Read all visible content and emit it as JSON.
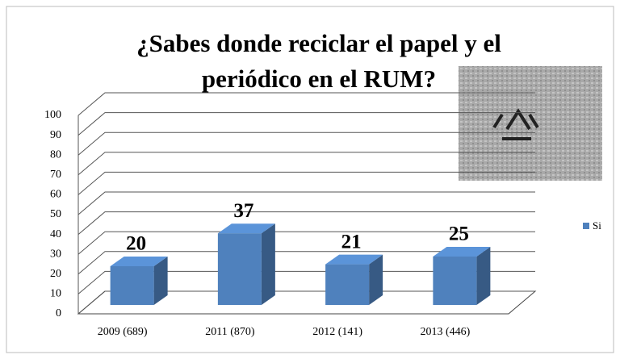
{
  "chart_data": {
    "type": "bar3d",
    "title": "¿Sabes donde reciclar el papel y el periódico en el RUM?",
    "categories": [
      "2009 (689)",
      "2011 (870)",
      "2012 (141)",
      "2013 (446)"
    ],
    "series": [
      {
        "name": "Si",
        "color": "#4f81bd",
        "values": [
          20,
          37,
          21,
          25
        ]
      }
    ],
    "ylim": [
      0,
      100
    ],
    "yticks": [
      0,
      10,
      20,
      30,
      40,
      50,
      60,
      70,
      80,
      90,
      100
    ],
    "grid": true,
    "legend": "right"
  }
}
